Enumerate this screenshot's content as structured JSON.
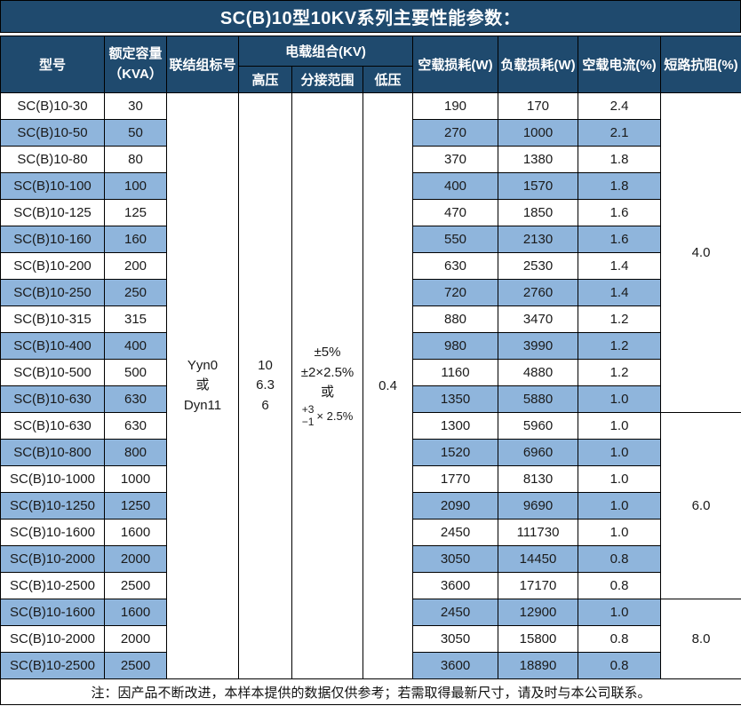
{
  "title": "SC(B)10型10KV系列主要性能参数：",
  "header": {
    "model": "型号",
    "capacity": "额定容量\n（KVA）",
    "vector_group": "联结组标号",
    "voltage_combo": "电载组合(KV)",
    "hv": "高压",
    "tap_range": "分接范围",
    "lv": "低压",
    "no_load_loss": "空载损耗(W)",
    "load_loss": "负载损耗(W)",
    "no_load_current": "空载电流(%)",
    "impedance": "短路抗阻(%)"
  },
  "merged": {
    "vector_group": "Yyn0\n或\nDyn11",
    "hv": "10\n6.3\n6",
    "tap_range_lines": "±5%\n±2×2.5%\n或",
    "tap_fraction": {
      "top": "+3",
      "bottom": "−1",
      "suffix": "× 2.5%"
    },
    "lv": "0.4"
  },
  "impedance_groups": [
    {
      "value": "4.0",
      "rows": 12
    },
    {
      "value": "6.0",
      "rows": 7
    },
    {
      "value": "8.0",
      "rows": 3
    }
  ],
  "rows": [
    {
      "model": "SC(B)10-30",
      "kva": "30",
      "no_load_loss": "190",
      "load_loss": "170",
      "no_load_current": "2.4"
    },
    {
      "model": "SC(B)10-50",
      "kva": "50",
      "no_load_loss": "270",
      "load_loss": "1000",
      "no_load_current": "2.1"
    },
    {
      "model": "SC(B)10-80",
      "kva": "80",
      "no_load_loss": "370",
      "load_loss": "1380",
      "no_load_current": "1.8"
    },
    {
      "model": "SC(B)10-100",
      "kva": "100",
      "no_load_loss": "400",
      "load_loss": "1570",
      "no_load_current": "1.8"
    },
    {
      "model": "SC(B)10-125",
      "kva": "125",
      "no_load_loss": "470",
      "load_loss": "1850",
      "no_load_current": "1.6"
    },
    {
      "model": "SC(B)10-160",
      "kva": "160",
      "no_load_loss": "550",
      "load_loss": "2130",
      "no_load_current": "1.6"
    },
    {
      "model": "SC(B)10-200",
      "kva": "200",
      "no_load_loss": "630",
      "load_loss": "2530",
      "no_load_current": "1.4"
    },
    {
      "model": "SC(B)10-250",
      "kva": "250",
      "no_load_loss": "720",
      "load_loss": "2760",
      "no_load_current": "1.4"
    },
    {
      "model": "SC(B)10-315",
      "kva": "315",
      "no_load_loss": "880",
      "load_loss": "3470",
      "no_load_current": "1.2"
    },
    {
      "model": "SC(B)10-400",
      "kva": "400",
      "no_load_loss": "980",
      "load_loss": "3990",
      "no_load_current": "1.2"
    },
    {
      "model": "SC(B)10-500",
      "kva": "500",
      "no_load_loss": "1160",
      "load_loss": "4880",
      "no_load_current": "1.2"
    },
    {
      "model": "SC(B)10-630",
      "kva": "630",
      "no_load_loss": "1350",
      "load_loss": "5880",
      "no_load_current": "1.0"
    },
    {
      "model": "SC(B)10-630",
      "kva": "630",
      "no_load_loss": "1300",
      "load_loss": "5960",
      "no_load_current": "1.0"
    },
    {
      "model": "SC(B)10-800",
      "kva": "800",
      "no_load_loss": "1520",
      "load_loss": "6960",
      "no_load_current": "1.0"
    },
    {
      "model": "SC(B)10-1000",
      "kva": "1000",
      "no_load_loss": "1770",
      "load_loss": "8130",
      "no_load_current": "1.0"
    },
    {
      "model": "SC(B)10-1250",
      "kva": "1250",
      "no_load_loss": "2090",
      "load_loss": "9690",
      "no_load_current": "1.0"
    },
    {
      "model": "SC(B)10-1600",
      "kva": "1600",
      "no_load_loss": "2450",
      "load_loss": "111730",
      "no_load_current": "1.0"
    },
    {
      "model": "SC(B)10-2000",
      "kva": "2000",
      "no_load_loss": "3050",
      "load_loss": "14450",
      "no_load_current": "0.8"
    },
    {
      "model": "SC(B)10-2500",
      "kva": "2500",
      "no_load_loss": "3600",
      "load_loss": "17170",
      "no_load_current": "0.8"
    },
    {
      "model": "SC(B)10-1600",
      "kva": "1600",
      "no_load_loss": "2450",
      "load_loss": "12900",
      "no_load_current": "1.0"
    },
    {
      "model": "SC(B)10-2000",
      "kva": "2000",
      "no_load_loss": "3050",
      "load_loss": "15800",
      "no_load_current": "0.8"
    },
    {
      "model": "SC(B)10-2500",
      "kva": "2500",
      "no_load_loss": "3600",
      "load_loss": "18890",
      "no_load_current": "0.8"
    }
  ],
  "footer_note": "注：因产品不断改进，本样本提供的数据仅供参考；若需取得最新尺寸，请及时与本公司联系。",
  "colors": {
    "header_bg": "#1f4a6e",
    "band_blue": "#8fb5dc",
    "header_text": "#ffffff",
    "border": "#000000"
  }
}
